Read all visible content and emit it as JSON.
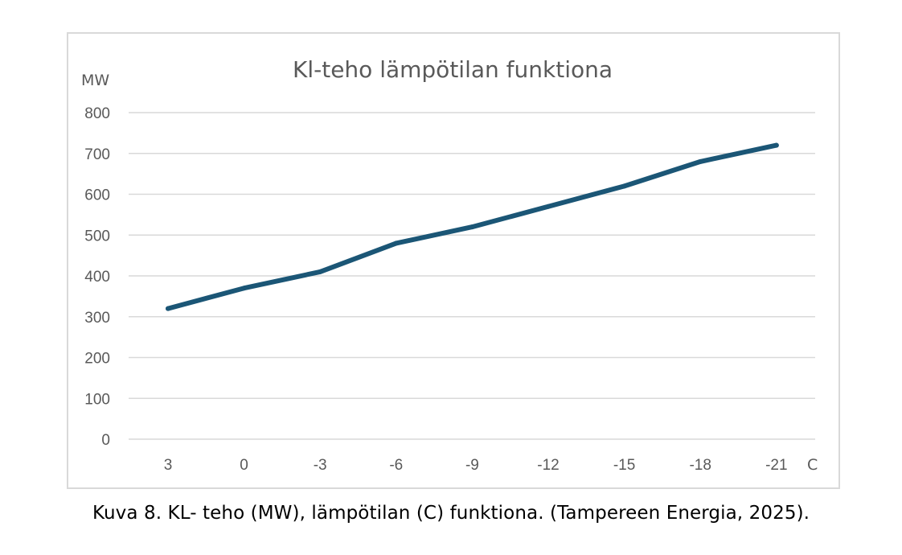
{
  "chart_data": {
    "type": "line",
    "title": "Kl-teho lämpötilan funktiona",
    "ylabel": "MW",
    "xlabel": "C",
    "categories": [
      "3",
      "0",
      "-3",
      "-6",
      "-9",
      "-12",
      "-15",
      "-18",
      "-21"
    ],
    "series": [
      {
        "name": "KL-teho",
        "values": [
          320,
          370,
          410,
          480,
          520,
          570,
          620,
          680,
          720
        ]
      }
    ],
    "ylim": [
      0,
      800
    ],
    "yticks": [
      0,
      100,
      200,
      300,
      400,
      500,
      600,
      700,
      800
    ],
    "grid": true,
    "line_color": "#1b5676",
    "grid_color": "#d9d9d9",
    "frame_color": "#d9d9d9",
    "tick_color": "#595959"
  },
  "caption": "Kuva 8. KL- teho (MW), lämpötilan (C) funktiona. (Tampereen Energia, 2025)."
}
